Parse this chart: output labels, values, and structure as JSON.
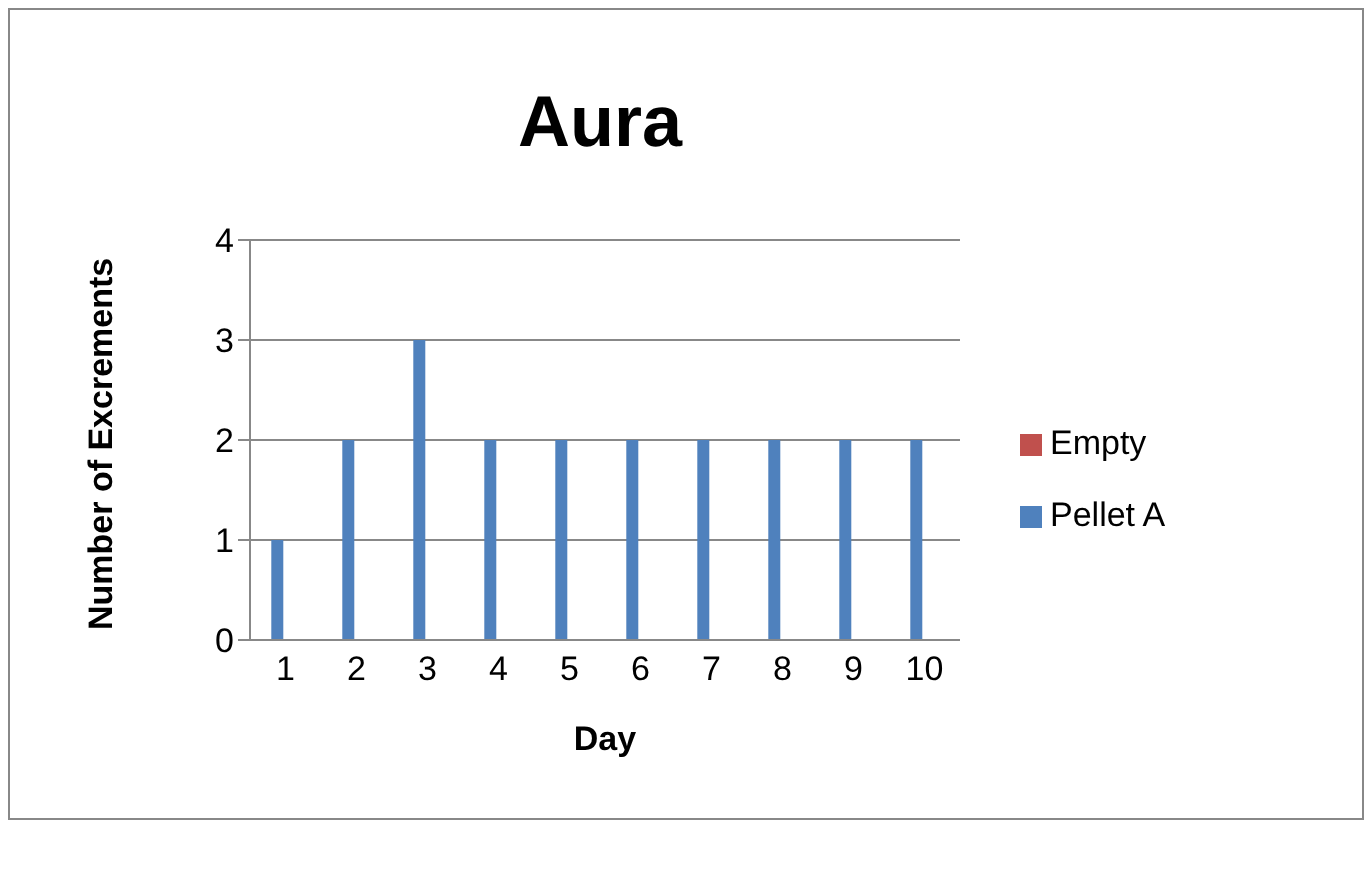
{
  "chart_data": {
    "type": "bar",
    "title": "Aura",
    "xlabel": "Day",
    "ylabel": "Number of Excrements",
    "categories": [
      "1",
      "2",
      "3",
      "4",
      "5",
      "6",
      "7",
      "8",
      "9",
      "10"
    ],
    "series": [
      {
        "name": "Pellet A",
        "color": "#4f81bd",
        "values": [
          1,
          2,
          3,
          2,
          2,
          2,
          2,
          2,
          2,
          2
        ]
      },
      {
        "name": "Empty",
        "color": "#c0504d",
        "values": [
          0,
          0,
          0,
          0,
          0,
          0,
          0,
          0,
          0,
          0
        ]
      }
    ],
    "ylim": [
      0,
      4
    ],
    "yticks": [
      0,
      1,
      2,
      3,
      4
    ],
    "grid": "y",
    "legend": "right"
  }
}
